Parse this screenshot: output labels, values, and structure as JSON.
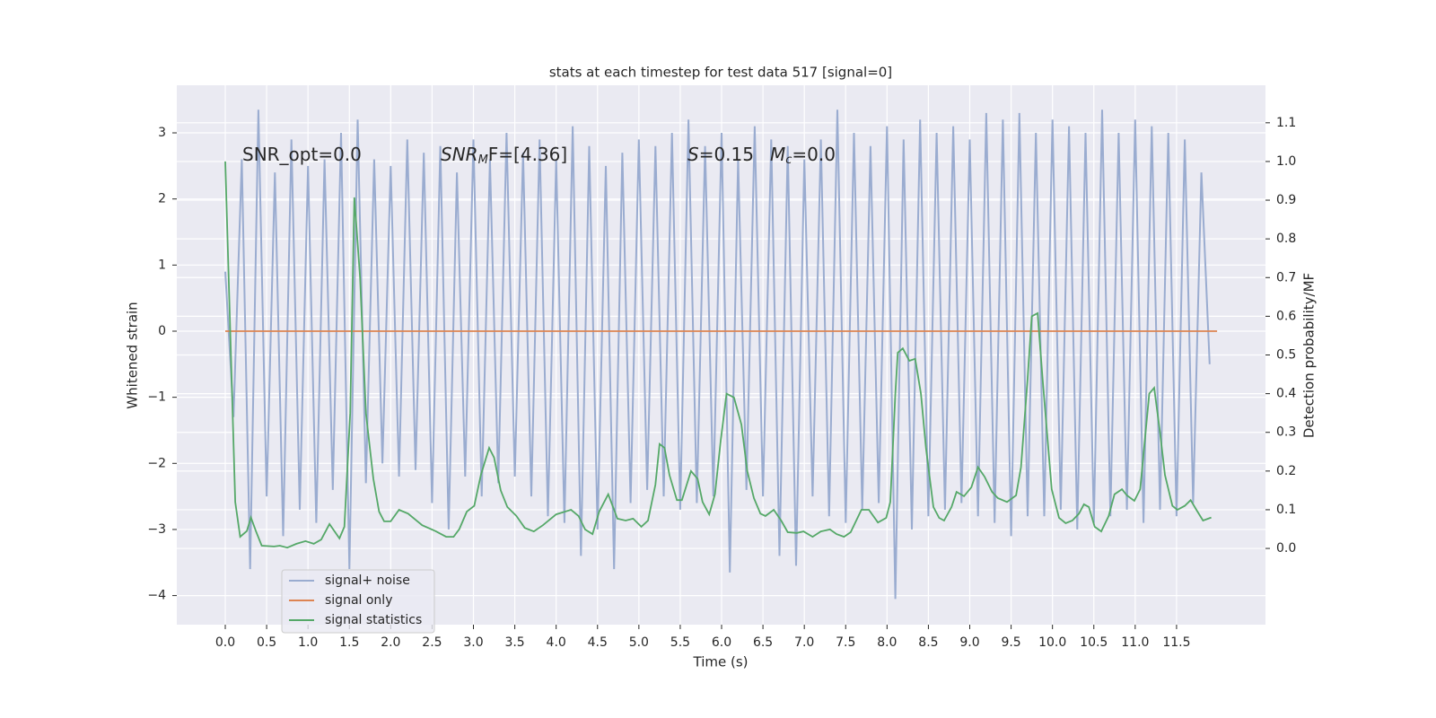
{
  "chart_data": {
    "type": "line",
    "title": "stats at each timestep for test data 517 [signal=0]",
    "x_label": "Time (s)",
    "y_label": "Whitened strain",
    "y2_label": "Detection probability/MF",
    "xlim": [
      -0.586,
      12.575
    ],
    "ylim": [
      -4.44,
      3.72
    ],
    "y2lim": [
      -0.197,
      1.197
    ],
    "xticks": [
      {
        "value": 0,
        "label": "0.0"
      },
      0.5,
      {
        "value": 1,
        "label": "1.0"
      },
      1.5,
      {
        "value": 2,
        "label": "2.0"
      },
      2.5,
      {
        "value": 3,
        "label": "3.0"
      },
      3.5,
      {
        "value": 4,
        "label": "4.0"
      },
      4.5,
      {
        "value": 5,
        "label": "5.0"
      },
      5.5,
      {
        "value": 6,
        "label": "6.0"
      },
      6.5,
      {
        "value": 7,
        "label": "7.0"
      },
      7.5,
      {
        "value": 8,
        "label": "8.0"
      },
      8.5,
      {
        "value": 9,
        "label": "9.0"
      },
      9.5,
      {
        "value": 10,
        "label": "10.0"
      },
      10.5,
      {
        "value": 11,
        "label": "11.0"
      },
      11.5
    ],
    "yticks": [
      {
        "value": -4,
        "label": "−4"
      },
      {
        "value": -3,
        "label": "−3"
      },
      {
        "value": -2,
        "label": "−2"
      },
      {
        "value": -1,
        "label": "−1"
      },
      0,
      1,
      2,
      3
    ],
    "y2ticks": [
      {
        "value": 0,
        "label": "0.0"
      },
      0.1,
      0.2,
      0.3,
      0.4,
      0.5,
      0.6,
      0.7,
      0.8,
      0.9,
      {
        "value": 1,
        "label": "1.0"
      },
      1.1
    ],
    "grid": true,
    "legend": "lower left",
    "annotations": [
      {
        "text": "SNR_opt=0.0"
      },
      {
        "symbol": "SNR",
        "sub": "M",
        "rest": "F=[4.36]"
      },
      {
        "symbol": "S",
        "rest": "=0.15"
      },
      {
        "symbol": "M",
        "sub": "c",
        "rest": "=0.0"
      }
    ],
    "series": [
      {
        "name": "signal+ noise",
        "color": "#9aacd0",
        "x": [
          0,
          0.1,
          0.2,
          0.3,
          0.4,
          0.5,
          0.6,
          0.7,
          0.8,
          0.9,
          1,
          1.1,
          1.2,
          1.3,
          1.4,
          1.5,
          1.6,
          1.7,
          1.8,
          1.9,
          2,
          2.1,
          2.2,
          2.3,
          2.4,
          2.5,
          2.6,
          2.7,
          2.8,
          2.9,
          3,
          3.1,
          3.2,
          3.3,
          3.4,
          3.5,
          3.6,
          3.7,
          3.8,
          3.9,
          4,
          4.1,
          4.2,
          4.3,
          4.4,
          4.5,
          4.6,
          4.7,
          4.8,
          4.9,
          5,
          5.1,
          5.2,
          5.3,
          5.4,
          5.5,
          5.6,
          5.7,
          5.8,
          5.9,
          6,
          6.1,
          6.2,
          6.3,
          6.4,
          6.5,
          6.6,
          6.7,
          6.8,
          6.9,
          7,
          7.1,
          7.2,
          7.3,
          7.4,
          7.5,
          7.6,
          7.7,
          7.8,
          7.9,
          8,
          8.1,
          8.2,
          8.3,
          8.4,
          8.5,
          8.6,
          8.7,
          8.8,
          8.9,
          9,
          9.1,
          9.2,
          9.3,
          9.4,
          9.5,
          9.6,
          9.7,
          9.8,
          9.9,
          10,
          10.1,
          10.2,
          10.3,
          10.4,
          10.5,
          10.6,
          10.7,
          10.8,
          10.9,
          11,
          11.1,
          11.2,
          11.3,
          11.4,
          11.5,
          11.6,
          11.7,
          11.8,
          11.9
        ],
        "values": [
          0.9,
          -1.3,
          2.6,
          -3.6,
          3.35,
          -2.5,
          2.4,
          -3.1,
          2.9,
          -2.7,
          2.5,
          -2.9,
          2.6,
          -2.4,
          3.0,
          -3.6,
          3.2,
          -2.3,
          2.6,
          -2.0,
          2.5,
          -2.2,
          2.9,
          -2.1,
          2.7,
          -2.6,
          2.8,
          -3.0,
          2.4,
          -2.2,
          2.9,
          -2.5,
          2.6,
          -2.3,
          3.0,
          -2.2,
          2.7,
          -2.5,
          2.9,
          -2.8,
          2.6,
          -2.9,
          3.1,
          -3.4,
          2.8,
          -3.0,
          2.5,
          -3.6,
          2.7,
          -2.6,
          2.9,
          -2.4,
          2.8,
          -2.5,
          3.0,
          -2.7,
          3.2,
          -2.6,
          2.8,
          -2.5,
          3.0,
          -3.65,
          2.6,
          -2.4,
          3.1,
          -2.5,
          2.9,
          -3.4,
          2.8,
          -3.55,
          2.6,
          -2.5,
          2.9,
          -2.8,
          3.35,
          -2.9,
          3.0,
          -2.7,
          2.8,
          -2.6,
          3.1,
          -4.05,
          2.9,
          -3.0,
          3.2,
          -2.8,
          3.0,
          -2.7,
          3.1,
          -2.6,
          2.9,
          -2.8,
          3.3,
          -2.9,
          3.2,
          -3.1,
          3.3,
          -2.8,
          3.0,
          -2.8,
          3.2,
          -2.7,
          3.1,
          -3.0,
          3.0,
          -2.9,
          3.35,
          -2.8,
          3.0,
          -2.7,
          3.2,
          -2.9,
          3.1,
          -2.7,
          3.0,
          -2.8,
          2.9,
          -2.6,
          2.4,
          -0.5
        ]
      },
      {
        "name": "signal only",
        "color": "#dd8452",
        "x": [
          0,
          11.99
        ],
        "values": [
          0,
          0
        ]
      },
      {
        "name": "signal statistics",
        "color": "#55a868",
        "axis": "y2",
        "x": [
          0,
          0.12,
          0.18,
          0.26,
          0.31,
          0.37,
          0.44,
          0.59,
          0.66,
          0.75,
          0.86,
          0.97,
          1.07,
          1.16,
          1.26,
          1.38,
          1.44,
          1.51,
          1.56,
          1.63,
          1.7,
          1.79,
          1.86,
          1.92,
          2,
          2.1,
          2.21,
          2.38,
          2.54,
          2.67,
          2.76,
          2.83,
          2.92,
          3.01,
          3.09,
          3.19,
          3.25,
          3.33,
          3.41,
          3.52,
          3.62,
          3.73,
          3.84,
          4,
          4.18,
          4.27,
          4.35,
          4.44,
          4.52,
          4.63,
          4.74,
          4.84,
          4.93,
          5.03,
          5.11,
          5.2,
          5.25,
          5.31,
          5.37,
          5.46,
          5.52,
          5.63,
          5.71,
          5.77,
          5.85,
          5.92,
          5.99,
          6.06,
          6.15,
          6.24,
          6.31,
          6.39,
          6.47,
          6.53,
          6.63,
          6.72,
          6.8,
          6.91,
          6.99,
          7.1,
          7.2,
          7.31,
          7.39,
          7.48,
          7.56,
          7.69,
          7.78,
          7.89,
          7.99,
          8.04,
          8.1,
          8.13,
          8.19,
          8.27,
          8.34,
          8.41,
          8.47,
          8.56,
          8.63,
          8.69,
          8.78,
          8.84,
          8.93,
          9.02,
          9.1,
          9.18,
          9.27,
          9.34,
          9.45,
          9.56,
          9.62,
          9.7,
          9.75,
          9.82,
          9.88,
          9.99,
          10.08,
          10.16,
          10.24,
          10.32,
          10.38,
          10.44,
          10.51,
          10.59,
          10.68,
          10.75,
          10.84,
          10.9,
          10.99,
          11.06,
          11.17,
          11.23,
          11.3,
          11.36,
          11.45,
          11.51,
          11.6,
          11.67,
          11.74,
          11.82,
          11.92
        ],
        "values": [
          1.0,
          0.12,
          0.03,
          0.045,
          0.08,
          0.045,
          0.007,
          0.005,
          0.007,
          0.002,
          0.012,
          0.019,
          0.012,
          0.023,
          0.063,
          0.026,
          0.056,
          0.35,
          0.907,
          0.7,
          0.35,
          0.18,
          0.095,
          0.07,
          0.07,
          0.1,
          0.09,
          0.06,
          0.045,
          0.03,
          0.03,
          0.05,
          0.095,
          0.11,
          0.19,
          0.26,
          0.235,
          0.15,
          0.107,
          0.084,
          0.053,
          0.044,
          0.06,
          0.088,
          0.1,
          0.084,
          0.049,
          0.037,
          0.095,
          0.14,
          0.077,
          0.072,
          0.077,
          0.056,
          0.072,
          0.165,
          0.27,
          0.26,
          0.19,
          0.125,
          0.125,
          0.2,
          0.18,
          0.12,
          0.088,
          0.14,
          0.28,
          0.4,
          0.39,
          0.32,
          0.2,
          0.13,
          0.09,
          0.084,
          0.1,
          0.072,
          0.042,
          0.04,
          0.044,
          0.03,
          0.044,
          0.049,
          0.037,
          0.03,
          0.042,
          0.1,
          0.1,
          0.067,
          0.079,
          0.12,
          0.4,
          0.506,
          0.517,
          0.485,
          0.49,
          0.4,
          0.26,
          0.107,
          0.079,
          0.072,
          0.107,
          0.146,
          0.135,
          0.158,
          0.21,
          0.185,
          0.146,
          0.13,
          0.12,
          0.137,
          0.21,
          0.44,
          0.6,
          0.608,
          0.44,
          0.153,
          0.079,
          0.065,
          0.072,
          0.09,
          0.114,
          0.107,
          0.056,
          0.044,
          0.084,
          0.14,
          0.153,
          0.137,
          0.123,
          0.153,
          0.4,
          0.415,
          0.3,
          0.19,
          0.11,
          0.1,
          0.11,
          0.125,
          0.1,
          0.072,
          0.08
        ]
      }
    ]
  }
}
